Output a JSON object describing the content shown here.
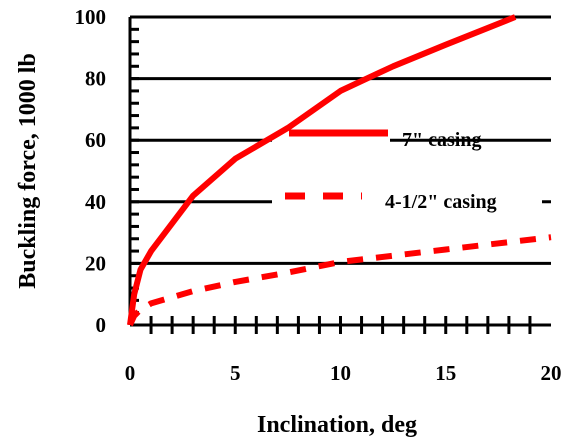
{
  "chart_data": {
    "type": "line",
    "xlabel": "Inclination, deg",
    "ylabel": "Buckling force, 1000 lb",
    "xlim": [
      0,
      20
    ],
    "ylim": [
      0,
      100
    ],
    "x_ticks": [
      "0",
      "5",
      "10",
      "15",
      "20"
    ],
    "y_ticks": [
      "0",
      "20",
      "40",
      "60",
      "80",
      "100"
    ],
    "grid": "horizontal",
    "legend_position": "right-middle",
    "series": [
      {
        "name": "7\" casing",
        "style": "solid",
        "color": "#ff0000",
        "points": [
          [
            0,
            0
          ],
          [
            0.2,
            10
          ],
          [
            0.5,
            18
          ],
          [
            1,
            24
          ],
          [
            3,
            42
          ],
          [
            5,
            54
          ],
          [
            7.5,
            64
          ],
          [
            10,
            76
          ],
          [
            12.5,
            84
          ],
          [
            15,
            91
          ],
          [
            18.3,
            100
          ]
        ]
      },
      {
        "name": "4-1/2\" casing",
        "style": "dashed",
        "color": "#ff0000",
        "points": [
          [
            0,
            0
          ],
          [
            0.2,
            3
          ],
          [
            0.5,
            5
          ],
          [
            1,
            7
          ],
          [
            3,
            11
          ],
          [
            5,
            14
          ],
          [
            7.5,
            17
          ],
          [
            10,
            20.5
          ],
          [
            12.5,
            22.5
          ],
          [
            15,
            24.5
          ],
          [
            20,
            28.5
          ]
        ]
      }
    ]
  }
}
